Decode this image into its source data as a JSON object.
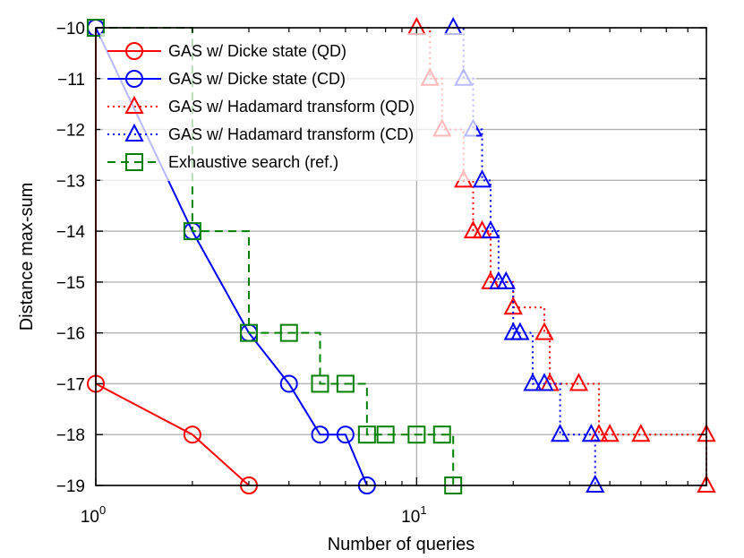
{
  "chart_data": {
    "type": "line",
    "xlabel": "Number of queries",
    "ylabel": "Distance max-sum",
    "xscale": "log",
    "xlim": [
      1,
      80
    ],
    "ylim": [
      -19,
      -10
    ],
    "x_ticks": [
      {
        "value": 1,
        "base": "10",
        "exp": "0"
      },
      {
        "value": 10,
        "base": "10",
        "exp": "1"
      }
    ],
    "y_ticks": [
      -10,
      -11,
      -12,
      -13,
      -14,
      -15,
      -16,
      -17,
      -18,
      -19
    ],
    "y_tick_labels": [
      "−10",
      "−11",
      "−12",
      "−13",
      "−14",
      "−15",
      "−16",
      "−17",
      "−18",
      "−19"
    ],
    "grid": true,
    "legend_position": "top-left",
    "series": [
      {
        "name": "GAS w/ Dicke state (QD)",
        "color": "#ff0000",
        "marker": "circle",
        "line": "solid",
        "points": [
          [
            1,
            -10
          ],
          [
            1,
            -17
          ],
          [
            2,
            -18
          ],
          [
            3,
            -19
          ]
        ]
      },
      {
        "name": "GAS w/ Dicke state (CD)",
        "color": "#0000ff",
        "marker": "circle",
        "line": "solid",
        "points": [
          [
            1,
            -10
          ],
          [
            2,
            -14
          ],
          [
            3,
            -16
          ],
          [
            4,
            -17
          ],
          [
            5,
            -18
          ],
          [
            6,
            -18
          ],
          [
            7,
            -19
          ]
        ]
      },
      {
        "name": "GAS w/ Hadamard transform (QD)",
        "color": "#ff0000",
        "marker": "triangle",
        "line": "dotted",
        "step": true,
        "points": [
          [
            10,
            -10
          ],
          [
            11,
            -11
          ],
          [
            12,
            -12
          ],
          [
            14,
            -13
          ],
          [
            15,
            -14
          ],
          [
            16,
            -14
          ],
          [
            17,
            -15
          ],
          [
            20,
            -15.5
          ],
          [
            25,
            -16
          ],
          [
            26,
            -17
          ],
          [
            32,
            -17
          ],
          [
            37,
            -18
          ],
          [
            40,
            -18
          ],
          [
            50,
            -18
          ],
          [
            80,
            -18
          ],
          [
            80,
            -19
          ]
        ]
      },
      {
        "name": "GAS w/ Hadamard transform (CD)",
        "color": "#0000ff",
        "marker": "triangle",
        "line": "dotted",
        "step": true,
        "points": [
          [
            13,
            -10
          ],
          [
            14,
            -11
          ],
          [
            15,
            -12
          ],
          [
            16,
            -13
          ],
          [
            17,
            -14
          ],
          [
            18,
            -15
          ],
          [
            19,
            -15
          ],
          [
            20,
            -16
          ],
          [
            21,
            -16
          ],
          [
            23,
            -17
          ],
          [
            25,
            -17
          ],
          [
            28,
            -18
          ],
          [
            35,
            -18
          ],
          [
            36,
            -19
          ]
        ]
      },
      {
        "name": "Exhaustive search (ref.)",
        "color": "#008000",
        "marker": "square",
        "line": "dashed",
        "step": true,
        "points": [
          [
            1,
            -10
          ],
          [
            2,
            -14
          ],
          [
            3,
            -16
          ],
          [
            4,
            -16
          ],
          [
            5,
            -17
          ],
          [
            6,
            -17
          ],
          [
            7,
            -18
          ],
          [
            8,
            -18
          ],
          [
            10,
            -18
          ],
          [
            12,
            -18
          ],
          [
            13,
            -19
          ]
        ]
      }
    ]
  }
}
